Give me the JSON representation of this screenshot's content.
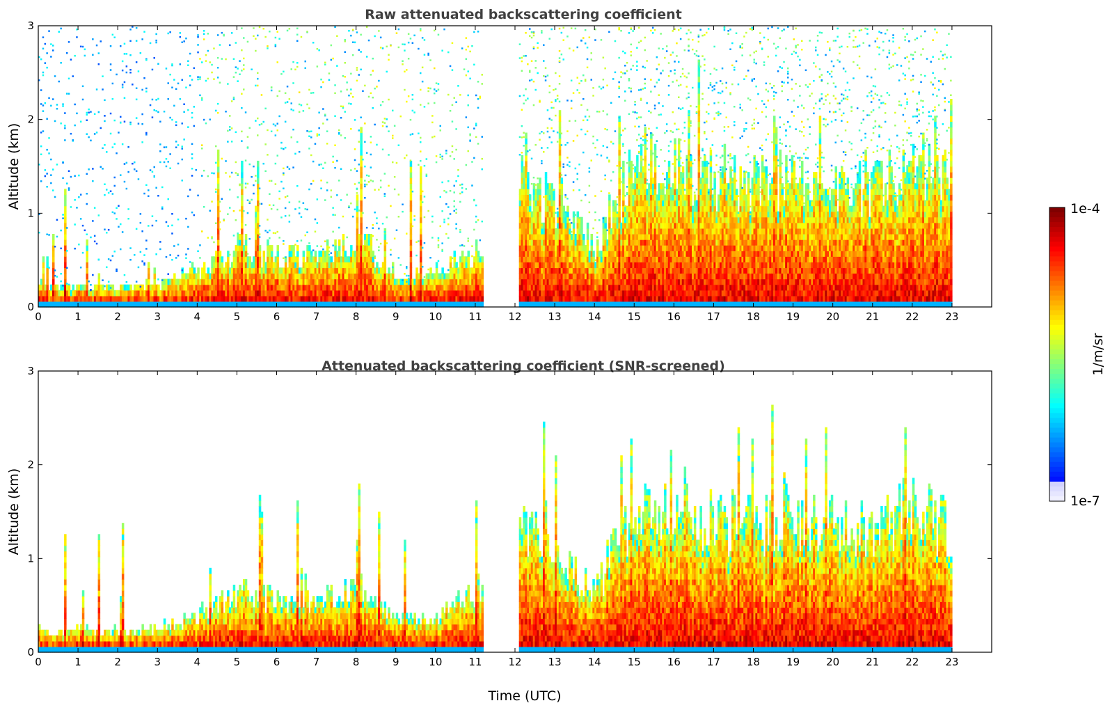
{
  "chart_data": [
    {
      "type": "heatmap",
      "title": "Raw attenuated backscattering coefficient",
      "xlabel": "",
      "ylabel": "Altitude (km)",
      "xlim": [
        0,
        24
      ],
      "ylim": [
        0,
        3
      ],
      "x_ticks": [
        "0",
        "1",
        "2",
        "3",
        "4",
        "5",
        "6",
        "7",
        "8",
        "9",
        "10",
        "11",
        "12",
        "13",
        "14",
        "15",
        "16",
        "17",
        "18",
        "19",
        "20",
        "21",
        "22",
        "23"
      ],
      "y_ticks": [
        "0",
        "1",
        "2",
        "3"
      ],
      "data_gap_hours": [
        11.2,
        12.1
      ],
      "data_end_hour": 23.0,
      "layer_top_km": [
        [
          0,
          0.2
        ],
        [
          1,
          0.18
        ],
        [
          2,
          0.18
        ],
        [
          3,
          0.22
        ],
        [
          4,
          0.35
        ],
        [
          5,
          0.6
        ],
        [
          6,
          0.5
        ],
        [
          7,
          0.5
        ],
        [
          8,
          0.7
        ],
        [
          9,
          0.3
        ],
        [
          10,
          0.35
        ],
        [
          11,
          0.55
        ],
        [
          12,
          1.4
        ],
        [
          13,
          1.0
        ],
        [
          14,
          0.6
        ],
        [
          15,
          1.5
        ],
        [
          16,
          1.4
        ],
        [
          17,
          1.3
        ],
        [
          18,
          1.3
        ],
        [
          19,
          1.3
        ],
        [
          20,
          1.3
        ],
        [
          21,
          1.2
        ],
        [
          22,
          1.5
        ],
        [
          23,
          1.2
        ]
      ],
      "noise": true
    },
    {
      "type": "heatmap",
      "title": "Attenuated backscattering coefficient (SNR-screened)",
      "xlabel": "Time (UTC)",
      "ylabel": "Altitude (km)",
      "xlim": [
        0,
        24
      ],
      "ylim": [
        0,
        3
      ],
      "x_ticks": [
        "0",
        "1",
        "2",
        "3",
        "4",
        "5",
        "6",
        "7",
        "8",
        "9",
        "10",
        "11",
        "12",
        "13",
        "14",
        "15",
        "16",
        "17",
        "18",
        "19",
        "20",
        "21",
        "22",
        "23"
      ],
      "y_ticks": [
        "0",
        "1",
        "2",
        "3"
      ],
      "data_gap_hours": [
        11.2,
        12.1
      ],
      "data_end_hour": 23.0,
      "layer_top_km": [
        [
          0,
          0.2
        ],
        [
          1,
          0.2
        ],
        [
          2,
          0.2
        ],
        [
          3,
          0.22
        ],
        [
          4,
          0.35
        ],
        [
          5,
          0.6
        ],
        [
          6,
          0.5
        ],
        [
          7,
          0.5
        ],
        [
          8,
          0.7
        ],
        [
          9,
          0.3
        ],
        [
          10,
          0.35
        ],
        [
          11,
          0.6
        ],
        [
          12,
          1.4
        ],
        [
          13,
          1.0
        ],
        [
          14,
          0.6
        ],
        [
          15,
          1.5
        ],
        [
          16,
          1.4
        ],
        [
          17,
          1.3
        ],
        [
          18,
          1.3
        ],
        [
          19,
          1.4
        ],
        [
          20,
          1.3
        ],
        [
          21,
          1.2
        ],
        [
          22,
          1.5
        ],
        [
          23,
          1.2
        ]
      ],
      "noise": false
    }
  ],
  "colorbar": {
    "label": "1/m/sr",
    "max_label": "1e-4",
    "min_label": "1e-7",
    "scale": "log",
    "colormap": "jet"
  }
}
